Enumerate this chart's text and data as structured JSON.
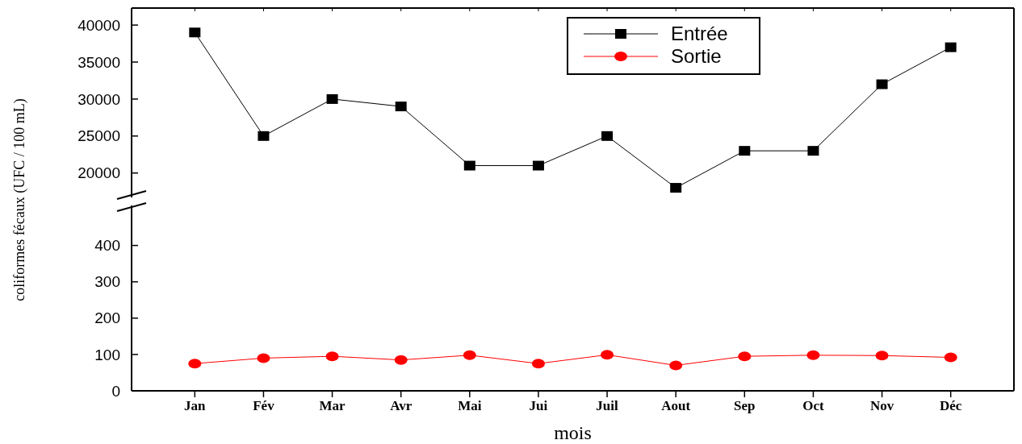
{
  "chart_data": [
    {
      "type": "line",
      "categories": [
        null,
        null,
        null,
        null,
        null,
        null,
        null,
        null,
        null,
        null,
        null,
        null
      ],
      "series": [
        {
          "name": "Entrée",
          "color": "#000000",
          "marker": "square",
          "values": [
            39000,
            25000,
            30000,
            29000,
            21000,
            21000,
            25000,
            18000,
            23000,
            23000,
            32000,
            37000
          ]
        }
      ],
      "ylim": [
        16700,
        42300
      ],
      "yticks": [
        20000,
        25000,
        30000,
        35000,
        40000
      ],
      "tick_labels": "y",
      "legend": "top right",
      "grid": false
    },
    {
      "type": "line",
      "categories": [
        "Jan",
        "Fév",
        "Mar",
        "Avr",
        "Mai",
        "Jui",
        "Juil",
        "Aout",
        "Sep",
        "Oct",
        "Nov",
        "Déc"
      ],
      "series": [
        {
          "name": "Sortie",
          "color": "#ff0000",
          "marker": "circle",
          "values": [
            75,
            90,
            95,
            85,
            98,
            75,
            99,
            70,
            95,
            98,
            97,
            92
          ]
        }
      ],
      "ylim": [
        0,
        510
      ],
      "yticks": [
        0,
        100,
        200,
        300,
        400
      ],
      "xlabel": "mois",
      "ylabel": "coliformes fécaux  (UFC / 100 mL)",
      "legend": "top right",
      "grid": false
    }
  ]
}
